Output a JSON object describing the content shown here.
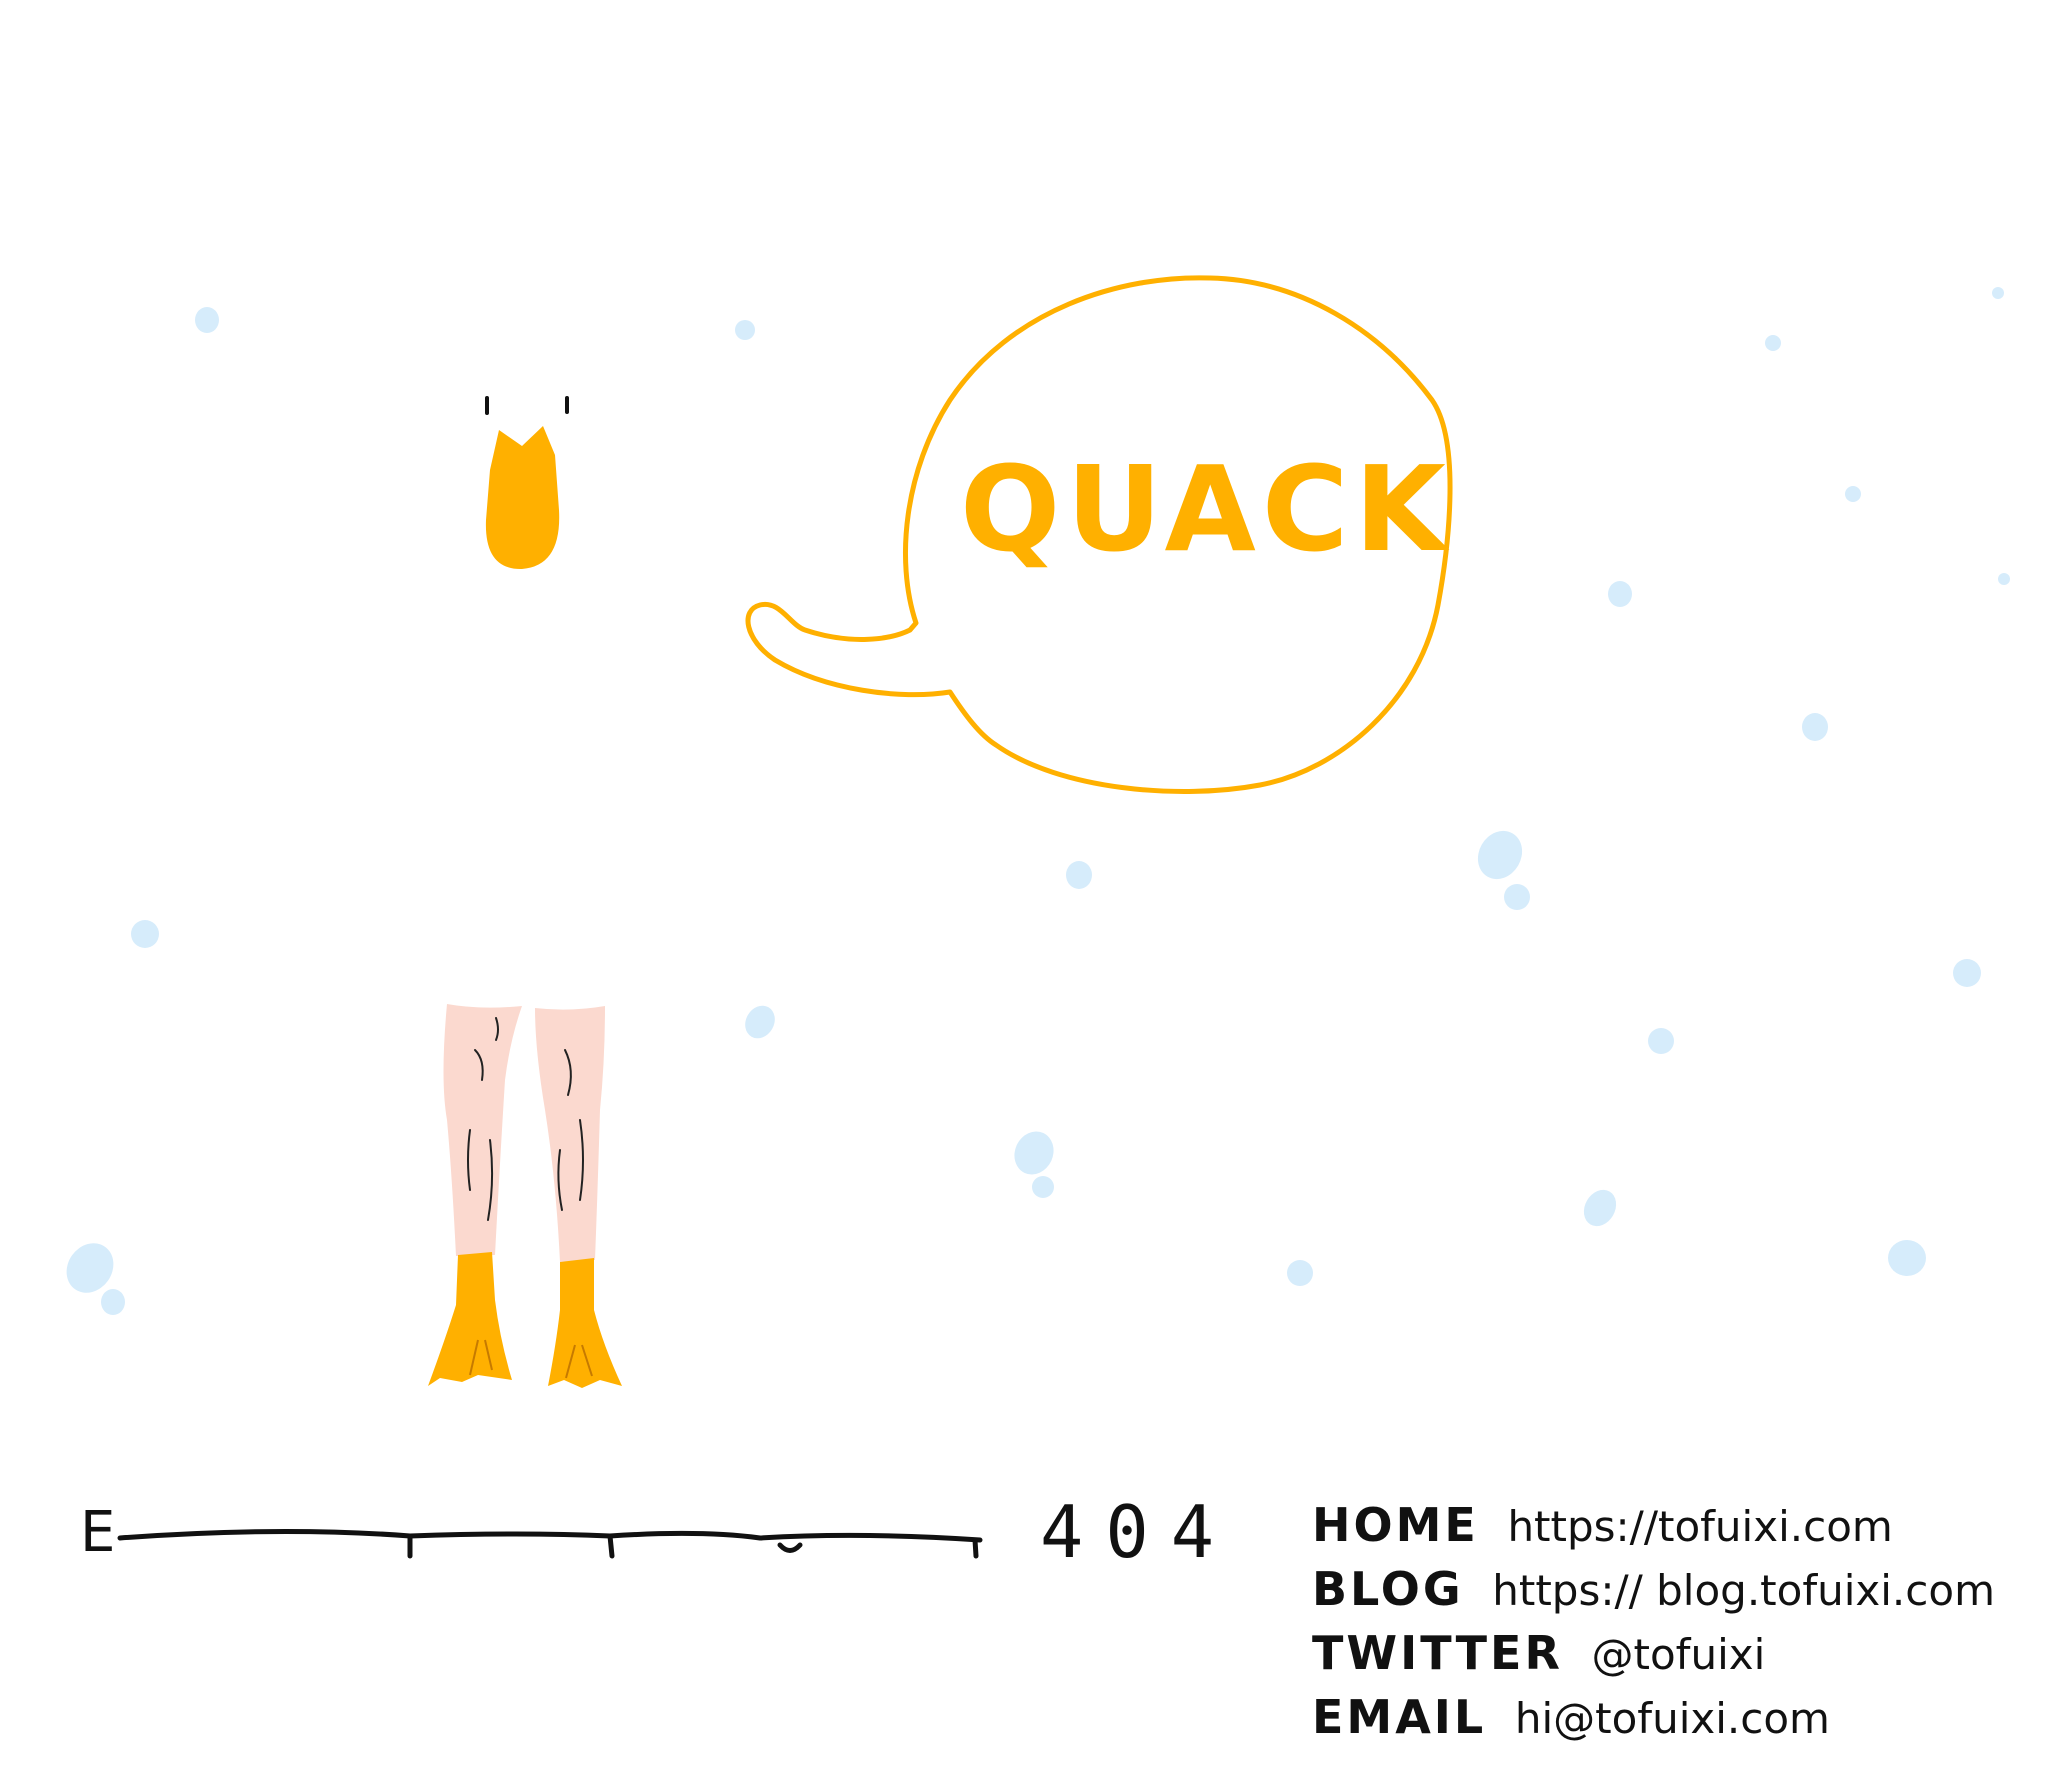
{
  "speech_bubble": {
    "text": "QUACK"
  },
  "error_line": {
    "letter": "E",
    "code": "404"
  },
  "contacts": [
    {
      "label": "HOME",
      "value": "https://tofuixi.com"
    },
    {
      "label": "BLOG",
      "value": "https:// blog.tofuixi.com"
    },
    {
      "label": "TWITTER",
      "value": "@tofuixi"
    },
    {
      "label": "EMAIL",
      "value": "hi@tofuixi.com"
    }
  ],
  "colors": {
    "yellow": "#ffb000",
    "snow": "#d6ecfb",
    "skin": "#fbd9cf",
    "ink": "#111111",
    "background": "#ffffff"
  },
  "icons": [
    "duck-beak-icon",
    "duck-legs-icon",
    "speech-bubble-icon",
    "snow-dots"
  ]
}
